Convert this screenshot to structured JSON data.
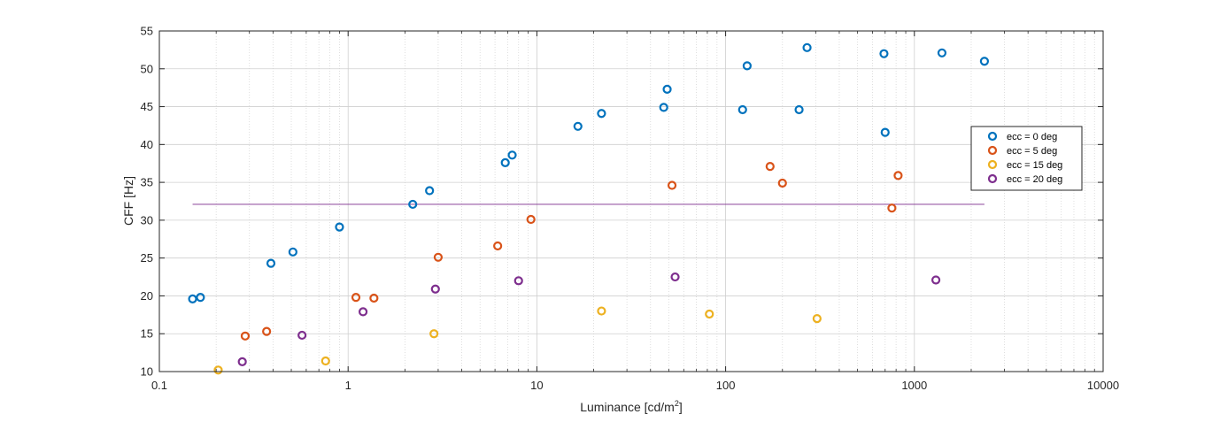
{
  "chart_data": {
    "type": "scatter",
    "xlabel_main": "Luminance [cd/m",
    "xlabel_sup": "2",
    "xlabel_tail": "]",
    "ylabel": "CFF [Hz]",
    "xscale": "log",
    "xlim": [
      0.1,
      10000
    ],
    "ylim": [
      10,
      55
    ],
    "grid": true,
    "x_ticks": [
      0.1,
      1,
      10,
      100,
      1000,
      10000
    ],
    "x_tick_labels": [
      "0.1",
      "1",
      "10",
      "100",
      "1000",
      "10000"
    ],
    "y_ticks": [
      10,
      15,
      20,
      25,
      30,
      35,
      40,
      45,
      50,
      55
    ],
    "y_tick_labels": [
      "10",
      "15",
      "20",
      "25",
      "30",
      "35",
      "40",
      "45",
      "50",
      "55"
    ],
    "legend_position": "right",
    "series": [
      {
        "name": "ecc = 0 deg",
        "color": "#0072BD",
        "points": [
          [
            0.15,
            19.6
          ],
          [
            0.165,
            19.8
          ],
          [
            0.39,
            24.3
          ],
          [
            0.51,
            25.8
          ],
          [
            0.9,
            29.1
          ],
          [
            2.2,
            32.1
          ],
          [
            2.7,
            33.9
          ],
          [
            6.8,
            37.6
          ],
          [
            7.4,
            38.6
          ],
          [
            16.5,
            42.4
          ],
          [
            22,
            44.1
          ],
          [
            47,
            44.9
          ],
          [
            49,
            47.3
          ],
          [
            123,
            44.6
          ],
          [
            130,
            50.4
          ],
          [
            245,
            44.6
          ],
          [
            270,
            52.8
          ],
          [
            690,
            52.0
          ],
          [
            700,
            41.6
          ],
          [
            1400,
            52.1
          ],
          [
            2350,
            51.0
          ]
        ]
      },
      {
        "name": "ecc = 5 deg",
        "color": "#D95319",
        "points": [
          [
            0.285,
            14.7
          ],
          [
            0.37,
            15.3
          ],
          [
            1.1,
            19.8
          ],
          [
            1.37,
            19.7
          ],
          [
            3.0,
            25.1
          ],
          [
            6.2,
            26.6
          ],
          [
            9.3,
            30.1
          ],
          [
            52,
            34.6
          ],
          [
            172,
            37.1
          ],
          [
            200,
            34.9
          ],
          [
            760,
            31.6
          ],
          [
            820,
            35.9
          ]
        ]
      },
      {
        "name": "ecc = 15 deg",
        "color": "#EDB120",
        "points": [
          [
            0.205,
            10.2
          ],
          [
            0.76,
            11.4
          ],
          [
            2.85,
            15.0
          ],
          [
            22,
            18.0
          ],
          [
            82,
            17.6
          ],
          [
            305,
            17.0
          ]
        ]
      },
      {
        "name": "ecc = 20 deg",
        "color": "#7E2F8E",
        "points": [
          [
            0.275,
            11.3
          ],
          [
            0.57,
            14.8
          ],
          [
            1.2,
            17.9
          ],
          [
            2.9,
            20.9
          ],
          [
            8.0,
            22.0
          ],
          [
            54,
            22.5
          ],
          [
            1300,
            22.1
          ]
        ]
      }
    ],
    "reference_line": {
      "x": [
        0.15,
        2350
      ],
      "y": 32.1,
      "color": "#7E2F8E"
    }
  }
}
